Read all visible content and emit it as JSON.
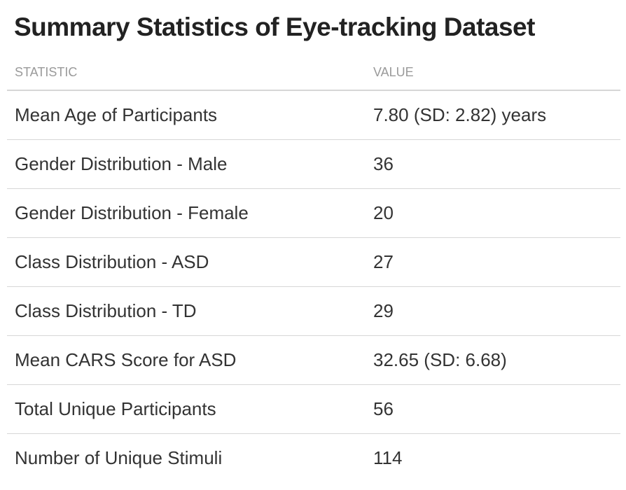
{
  "title": "Summary Statistics of Eye-tracking Dataset",
  "chart_data": {
    "type": "table",
    "title": "Summary Statistics of Eye-tracking Dataset",
    "columns": [
      "STATISTIC",
      "VALUE"
    ],
    "rows": [
      {
        "statistic": "Mean Age of Participants",
        "value": "7.80 (SD: 2.82) years"
      },
      {
        "statistic": "Gender Distribution - Male",
        "value": "36"
      },
      {
        "statistic": "Gender Distribution - Female",
        "value": "20"
      },
      {
        "statistic": "Class Distribution - ASD",
        "value": "27"
      },
      {
        "statistic": "Class Distribution - TD",
        "value": "29"
      },
      {
        "statistic": "Mean CARS Score for ASD",
        "value": "32.65 (SD: 6.68)"
      },
      {
        "statistic": "Total Unique Participants",
        "value": "56"
      },
      {
        "statistic": "Number of Unique Stimuli",
        "value": "114"
      }
    ]
  },
  "colors": {
    "title": "#222222",
    "header_text": "#9a9a9a",
    "cell_text": "#333333",
    "rule": "#d6d6d6"
  }
}
